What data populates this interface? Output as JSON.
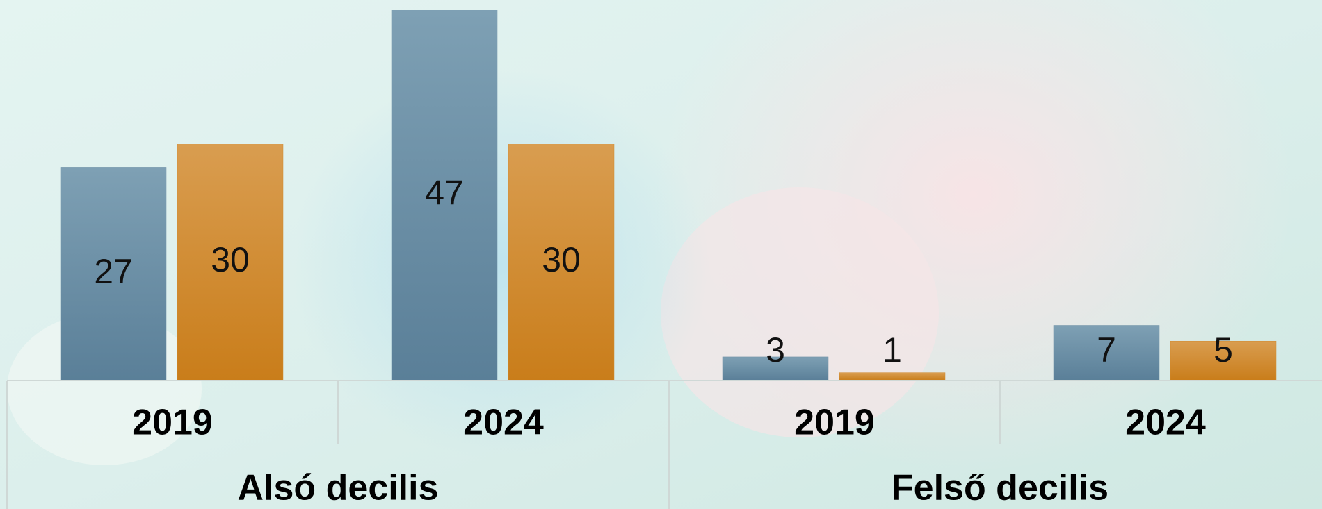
{
  "chart_data": {
    "type": "bar",
    "categories": [
      "2019",
      "2024",
      "2019",
      "2024"
    ],
    "groups": [
      "Alsó decilis",
      "Felső decilis"
    ],
    "series": [
      {
        "color": "#6a8ca3",
        "values": [
          27,
          47,
          3,
          7
        ]
      },
      {
        "color": "#d18a2e",
        "values": [
          30,
          30,
          1,
          5
        ]
      }
    ],
    "ylim": [
      0,
      48
    ]
  }
}
